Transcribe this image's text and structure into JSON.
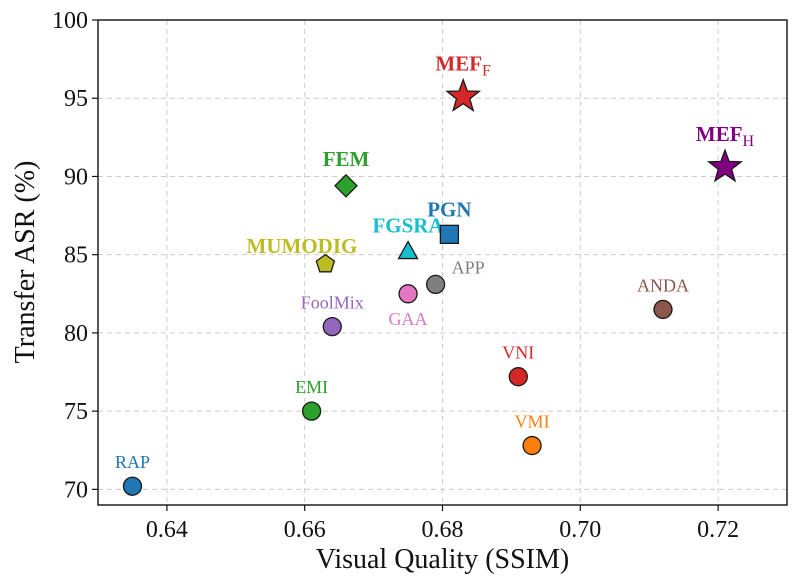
{
  "chart_data": {
    "type": "scatter",
    "title": "",
    "xlabel": "Visual Quality (SSIM)",
    "ylabel": "Transfer ASR (%)",
    "xlim": [
      0.63,
      0.73
    ],
    "ylim": [
      69,
      100
    ],
    "xticks": [
      0.64,
      0.66,
      0.68,
      0.7,
      0.72
    ],
    "xtick_labels": [
      "0.64",
      "0.66",
      "0.68",
      "0.70",
      "0.72"
    ],
    "yticks": [
      70,
      75,
      80,
      85,
      90,
      95,
      100
    ],
    "ytick_labels": [
      "70",
      "75",
      "80",
      "85",
      "90",
      "95",
      "100"
    ],
    "grid": true,
    "points": [
      {
        "id": "rap",
        "label": "RAP",
        "x": 0.635,
        "y": 70.2,
        "marker": "circle",
        "color": "#1f77b4",
        "bold": false,
        "label_pos": "above"
      },
      {
        "id": "emi",
        "label": "EMI",
        "x": 0.661,
        "y": 75.0,
        "marker": "circle",
        "color": "#2ca02c",
        "bold": false,
        "label_pos": "above"
      },
      {
        "id": "foolmix",
        "label": "FoolMix",
        "x": 0.664,
        "y": 80.4,
        "marker": "circle",
        "color": "#9467bd",
        "bold": false,
        "label_pos": "above"
      },
      {
        "id": "gaa",
        "label": "GAA",
        "x": 0.675,
        "y": 82.5,
        "marker": "circle",
        "color": "#e377c2",
        "bold": false,
        "label_pos": "below"
      },
      {
        "id": "app",
        "label": "APP",
        "x": 0.679,
        "y": 83.1,
        "marker": "circle",
        "color": "#7f7f7f",
        "bold": false,
        "label_pos": "upper-right"
      },
      {
        "id": "vni",
        "label": "VNI",
        "x": 0.691,
        "y": 77.2,
        "marker": "circle",
        "color": "#d62728",
        "bold": false,
        "label_pos": "above"
      },
      {
        "id": "vmi",
        "label": "VMI",
        "x": 0.693,
        "y": 72.8,
        "marker": "circle",
        "color": "#ff7f0e",
        "bold": false,
        "label_pos": "above"
      },
      {
        "id": "anda",
        "label": "ANDA",
        "x": 0.712,
        "y": 81.5,
        "marker": "circle",
        "color": "#8c564b",
        "bold": false,
        "label_pos": "above"
      },
      {
        "id": "mumodig",
        "label": "MUMODIG",
        "x": 0.663,
        "y": 84.4,
        "marker": "pentagon",
        "color": "#bcbd22",
        "bold": true,
        "label_pos": "upper-left"
      },
      {
        "id": "fgsra",
        "label": "FGSRA",
        "x": 0.675,
        "y": 85.2,
        "marker": "triangle",
        "color": "#17becf",
        "bold": true,
        "label_pos": "above"
      },
      {
        "id": "pgn",
        "label": "PGN",
        "x": 0.681,
        "y": 86.3,
        "marker": "square",
        "color": "#1f77b4",
        "bold": true,
        "label_pos": "above"
      },
      {
        "id": "fem",
        "label": "FEM",
        "x": 0.666,
        "y": 89.4,
        "marker": "diamond",
        "color": "#2ca02c",
        "bold": true,
        "label_pos": "above"
      },
      {
        "id": "mef-f",
        "label": "MEF",
        "subscript": "F",
        "x": 0.683,
        "y": 95.1,
        "marker": "star",
        "color": "#d62728",
        "bold": true,
        "label_pos": "above"
      },
      {
        "id": "mef-h",
        "label": "MEF",
        "subscript": "H",
        "x": 0.721,
        "y": 90.6,
        "marker": "star",
        "color": "#800080",
        "bold": true,
        "label_pos": "above"
      }
    ]
  }
}
